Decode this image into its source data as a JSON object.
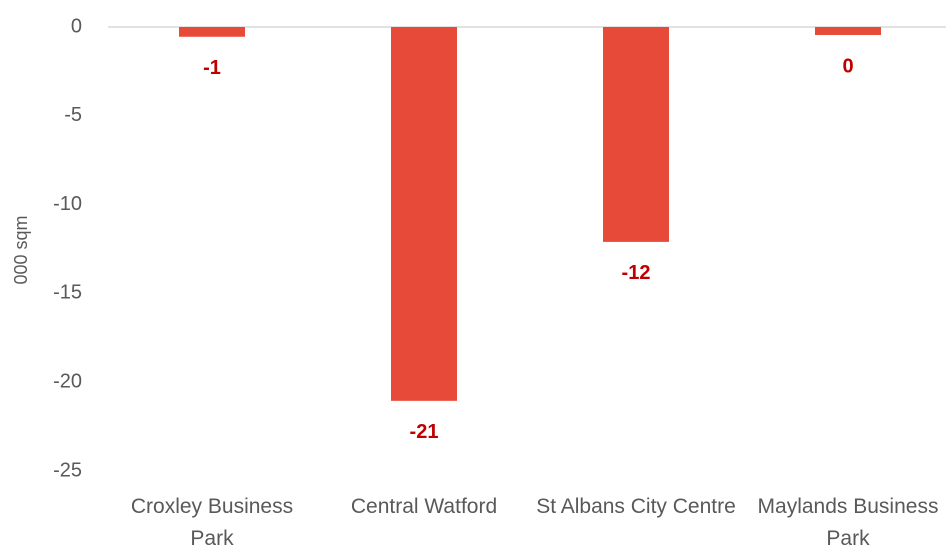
{
  "chart_data": {
    "type": "bar",
    "y_label": "000 sqm",
    "categories": [
      "Croxley Business Park",
      "Central Watford",
      "St Albans City Centre",
      "Maylands Business Park"
    ],
    "values": [
      -0.55,
      -21.05,
      -12.1,
      -0.45
    ],
    "value_labels": [
      "-1",
      "-21",
      "-12",
      "0"
    ],
    "color": "#e84a3a",
    "label_color": "#c00000",
    "ylim": [
      -25,
      0
    ],
    "yticks": [
      0,
      -5,
      -10,
      -15,
      -20,
      -25
    ],
    "grid": false
  }
}
